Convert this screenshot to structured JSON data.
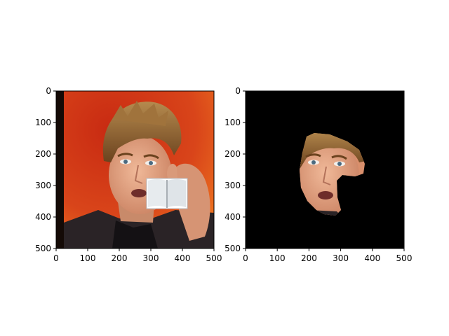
{
  "figure": {
    "background": "#ffffff",
    "panels": [
      {
        "name": "original-image",
        "image_description": "Photo of a young man with tousled brown hair holding a phone to his ear against an orange-red background; a small open-book icon is overlaid on his hand.",
        "x_ticks": [
          "0",
          "100",
          "200",
          "300",
          "400",
          "500"
        ],
        "y_ticks": [
          "0",
          "100",
          "200",
          "300",
          "400",
          "500"
        ],
        "xlim": [
          0,
          500
        ],
        "ylim": [
          500,
          0
        ]
      },
      {
        "name": "masked-face-image",
        "image_description": "Same photo with everything blacked out except an irregular region around the face.",
        "x_ticks": [
          "0",
          "100",
          "200",
          "300",
          "400",
          "500"
        ],
        "y_ticks": [
          "0",
          "100",
          "200",
          "300",
          "400",
          "500"
        ],
        "xlim": [
          0,
          500
        ],
        "ylim": [
          500,
          0
        ]
      }
    ],
    "colors": {
      "orange_bg": "#d9451a",
      "orange_light": "#f07a20",
      "mask_black": "#000000",
      "skin": "#e3a07e",
      "hair": "#8a5a2b"
    }
  }
}
